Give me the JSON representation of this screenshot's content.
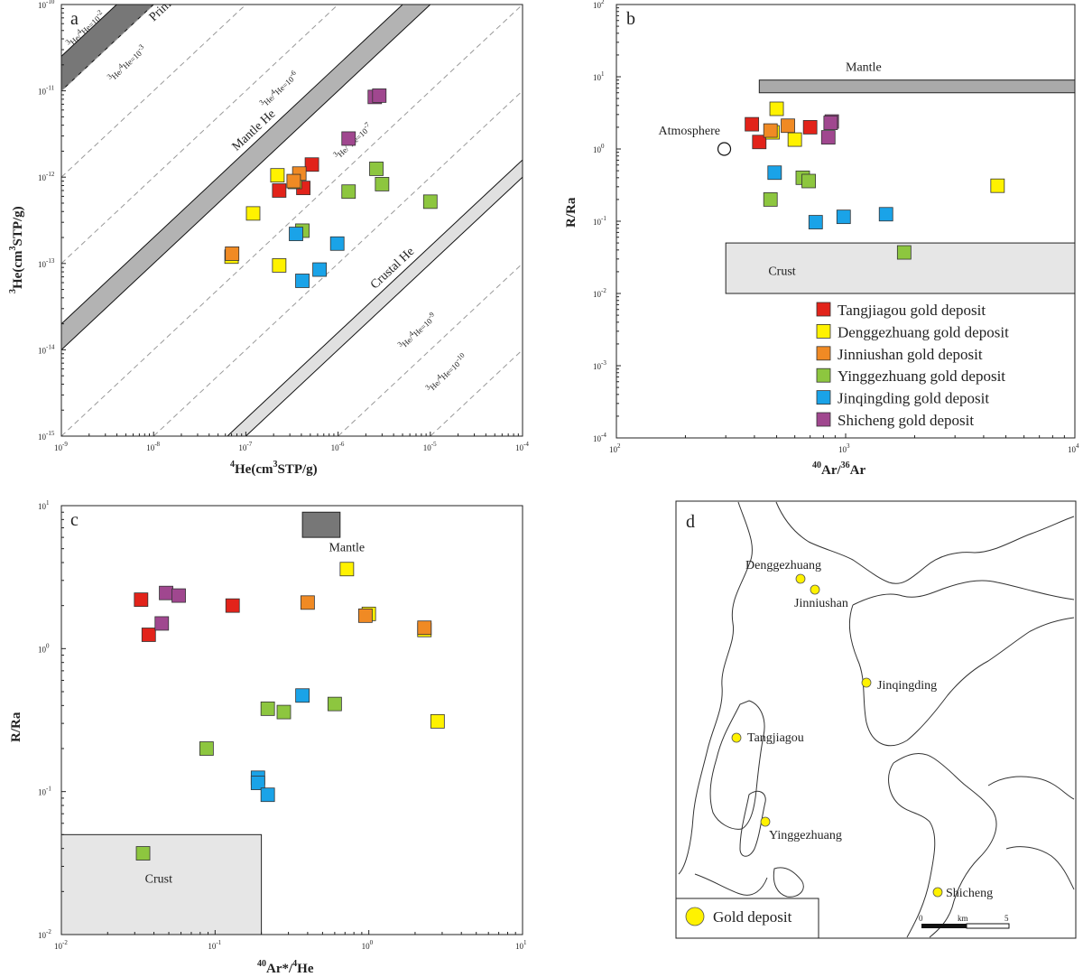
{
  "chart_data": [
    {
      "id": "a",
      "type": "scatter",
      "panel_label": "a",
      "xlabel_base": "He(cm",
      "xlabel_sup1": "4",
      "xlabel_sup2": "3",
      "xlabel_tail": "STP/g)",
      "ylabel_base": "He(cm",
      "ylabel_sup1": "3",
      "ylabel_sup2": "3",
      "ylabel_tail": "STP/g)",
      "x_scale": "log",
      "y_scale": "log",
      "xlim_exp": [
        -9,
        -4
      ],
      "ylim_exp": [
        -15,
        -10
      ],
      "x_tick_exponents": [
        -9,
        -8,
        -7,
        -6,
        -5,
        -4
      ],
      "y_tick_exponents": [
        -15,
        -14,
        -13,
        -12,
        -11,
        -10
      ],
      "bands": [
        {
          "name": "Primative He",
          "ratio_exp": [
            -2.0,
            -1.6
          ],
          "fill": "#777777"
        },
        {
          "name": "Mantle He",
          "ratio_exp": [
            -5.0,
            -4.7
          ],
          "fill": "#b3b3b3"
        },
        {
          "name": "Crustal He",
          "ratio_exp": [
            -8.0,
            -7.8
          ],
          "fill": "#e0e0e0"
        }
      ],
      "ratio_lines": [
        {
          "exp": -2,
          "label": "-2"
        },
        {
          "exp": -3,
          "label": "-3"
        },
        {
          "exp": -4,
          "label": ""
        },
        {
          "exp": -6,
          "label": "-6"
        },
        {
          "exp": -7,
          "label": "-7"
        },
        {
          "exp": -9,
          "label": "-9"
        },
        {
          "exp": -10,
          "label": "-10"
        }
      ],
      "points": [
        {
          "x": 2.3e-07,
          "y": 7e-13,
          "group": "Tangjiagou"
        },
        {
          "x": 4.2e-07,
          "y": 7.5e-13,
          "group": "Tangjiagou"
        },
        {
          "x": 5.2e-07,
          "y": 1.4e-12,
          "group": "Tangjiagou"
        },
        {
          "x": 2.2e-07,
          "y": 1.05e-12,
          "group": "Denggezhuang"
        },
        {
          "x": 1.2e-07,
          "y": 3.8e-13,
          "group": "Denggezhuang"
        },
        {
          "x": 2.3e-07,
          "y": 9.5e-14,
          "group": "Denggezhuang"
        },
        {
          "x": 7e-08,
          "y": 1.2e-13,
          "group": "Denggezhuang"
        },
        {
          "x": 3.4e-07,
          "y": 8.8e-13,
          "group": "Denggezhuang"
        },
        {
          "x": 7.1e-08,
          "y": 1.3e-13,
          "group": "Jinniushan"
        },
        {
          "x": 3.8e-07,
          "y": 1.1e-12,
          "group": "Jinniushan"
        },
        {
          "x": 3.3e-07,
          "y": 9e-13,
          "group": "Jinniushan"
        },
        {
          "x": 1.3e-06,
          "y": 6.8e-13,
          "group": "Yinggezhuang"
        },
        {
          "x": 2.6e-06,
          "y": 1.25e-12,
          "group": "Yinggezhuang"
        },
        {
          "x": 3e-06,
          "y": 8.3e-13,
          "group": "Yinggezhuang"
        },
        {
          "x": 1e-05,
          "y": 5.2e-13,
          "group": "Yinggezhuang"
        },
        {
          "x": 4.1e-07,
          "y": 2.4e-13,
          "group": "Yinggezhuang"
        },
        {
          "x": 3.5e-07,
          "y": 2.2e-13,
          "group": "Jinqingding"
        },
        {
          "x": 9.8e-07,
          "y": 1.7e-13,
          "group": "Jinqingding"
        },
        {
          "x": 6.3e-07,
          "y": 8.5e-14,
          "group": "Jinqingding"
        },
        {
          "x": 4.1e-07,
          "y": 6.3e-14,
          "group": "Jinqingding"
        },
        {
          "x": 2.5e-06,
          "y": 8.5e-12,
          "group": "Shicheng"
        },
        {
          "x": 2.8e-06,
          "y": 8.8e-12,
          "group": "Shicheng"
        },
        {
          "x": 1.3e-06,
          "y": 2.8e-12,
          "group": "Shicheng"
        }
      ]
    },
    {
      "id": "b",
      "type": "scatter",
      "panel_label": "b",
      "xlabel_sup1": "40",
      "xlabel_mid": "Ar/",
      "xlabel_sup2": "36",
      "xlabel_tail": "Ar",
      "ylabel": "R/Ra",
      "x_scale": "log",
      "y_scale": "log",
      "xlim_exp": [
        2,
        4
      ],
      "ylim_exp": [
        -4,
        2
      ],
      "x_tick_exponents": [
        2,
        3,
        4
      ],
      "y_tick_exponents": [
        -4,
        -3,
        -2,
        -1,
        0,
        1,
        2
      ],
      "regions": [
        {
          "name": "Mantle",
          "x": [
            420,
            10000
          ],
          "y": [
            6,
            9
          ],
          "fill": "#aaaaaa"
        },
        {
          "name": "Crust",
          "x": [
            300,
            10000
          ],
          "y": [
            0.01,
            0.05
          ],
          "fill": "#e6e6e6"
        }
      ],
      "atmosphere": {
        "label": "Atmosphere",
        "x": 295.5,
        "y": 1.0
      },
      "points": [
        {
          "x": 390,
          "y": 2.2,
          "group": "Tangjiagou"
        },
        {
          "x": 420,
          "y": 1.25,
          "group": "Tangjiagou"
        },
        {
          "x": 700,
          "y": 2.0,
          "group": "Tangjiagou"
        },
        {
          "x": 500,
          "y": 3.6,
          "group": "Denggezhuang"
        },
        {
          "x": 480,
          "y": 1.7,
          "group": "Denggezhuang"
        },
        {
          "x": 600,
          "y": 1.35,
          "group": "Denggezhuang"
        },
        {
          "x": 4600,
          "y": 0.31,
          "group": "Denggezhuang"
        },
        {
          "x": 470,
          "y": 1.8,
          "group": "Jinniushan"
        },
        {
          "x": 560,
          "y": 2.1,
          "group": "Jinniushan"
        },
        {
          "x": 470,
          "y": 0.2,
          "group": "Yinggezhuang"
        },
        {
          "x": 650,
          "y": 0.4,
          "group": "Yinggezhuang"
        },
        {
          "x": 690,
          "y": 0.36,
          "group": "Yinggezhuang"
        },
        {
          "x": 1800,
          "y": 0.037,
          "group": "Yinggezhuang"
        },
        {
          "x": 490,
          "y": 0.47,
          "group": "Jinqingding"
        },
        {
          "x": 740,
          "y": 0.097,
          "group": "Jinqingding"
        },
        {
          "x": 980,
          "y": 0.115,
          "group": "Jinqingding"
        },
        {
          "x": 1500,
          "y": 0.125,
          "group": "Jinqingding"
        },
        {
          "x": 870,
          "y": 2.4,
          "group": "Shicheng"
        },
        {
          "x": 860,
          "y": 2.3,
          "group": "Shicheng"
        },
        {
          "x": 840,
          "y": 1.45,
          "group": "Shicheng"
        }
      ],
      "legend": [
        {
          "group": "Tangjiagou",
          "label": "Tangjiagou gold deposit",
          "color": "#e2231a"
        },
        {
          "group": "Denggezhuang",
          "label": "Denggezhuang gold deposit",
          "color": "#fff200"
        },
        {
          "group": "Jinniushan",
          "label": "Jinniushan gold deposit",
          "color": "#f08a24"
        },
        {
          "group": "Yinggezhuang",
          "label": "Yinggezhuang gold deposit",
          "color": "#8dc63f"
        },
        {
          "group": "Jinqingding",
          "label": "Jinqingding gold deposit",
          "color": "#1aa3e8"
        },
        {
          "group": "Shicheng",
          "label": "Shicheng gold deposit",
          "color": "#a0478f"
        }
      ]
    },
    {
      "id": "c",
      "type": "scatter",
      "panel_label": "c",
      "xlabel_sup1": "40",
      "xlabel_mid": "Ar*/",
      "xlabel_sup2": "4",
      "xlabel_tail": "He",
      "ylabel": "R/Ra",
      "x_scale": "log",
      "y_scale": "log",
      "xlim_exp": [
        -2,
        1
      ],
      "ylim_exp": [
        -2,
        1
      ],
      "x_tick_exponents": [
        -2,
        -1,
        0,
        1
      ],
      "y_tick_exponents": [
        -2,
        -1,
        0,
        1
      ],
      "regions": [
        {
          "name": "Mantle",
          "x": [
            0.37,
            0.65
          ],
          "y": [
            6,
            9
          ],
          "fill": "#777777"
        },
        {
          "name": "Crust",
          "x": [
            0.01,
            0.2
          ],
          "y": [
            0.01,
            0.05
          ],
          "fill": "#e6e6e6"
        }
      ],
      "points": [
        {
          "x": 0.033,
          "y": 2.2,
          "group": "Tangjiagou"
        },
        {
          "x": 0.037,
          "y": 1.25,
          "group": "Tangjiagou"
        },
        {
          "x": 0.13,
          "y": 2.0,
          "group": "Tangjiagou"
        },
        {
          "x": 0.72,
          "y": 3.6,
          "group": "Denggezhuang"
        },
        {
          "x": 1.0,
          "y": 1.75,
          "group": "Denggezhuang"
        },
        {
          "x": 2.3,
          "y": 1.35,
          "group": "Denggezhuang"
        },
        {
          "x": 2.8,
          "y": 0.31,
          "group": "Denggezhuang"
        },
        {
          "x": 0.4,
          "y": 2.1,
          "group": "Jinniushan"
        },
        {
          "x": 0.95,
          "y": 1.7,
          "group": "Jinniushan"
        },
        {
          "x": 2.3,
          "y": 1.4,
          "group": "Jinniushan"
        },
        {
          "x": 0.088,
          "y": 0.2,
          "group": "Yinggezhuang"
        },
        {
          "x": 0.22,
          "y": 0.38,
          "group": "Yinggezhuang"
        },
        {
          "x": 0.28,
          "y": 0.36,
          "group": "Yinggezhuang"
        },
        {
          "x": 0.6,
          "y": 0.41,
          "group": "Yinggezhuang"
        },
        {
          "x": 0.034,
          "y": 0.037,
          "group": "Yinggezhuang"
        },
        {
          "x": 0.37,
          "y": 0.47,
          "group": "Jinqingding"
        },
        {
          "x": 0.19,
          "y": 0.125,
          "group": "Jinqingding"
        },
        {
          "x": 0.19,
          "y": 0.115,
          "group": "Jinqingding"
        },
        {
          "x": 0.22,
          "y": 0.095,
          "group": "Jinqingding"
        },
        {
          "x": 0.048,
          "y": 2.45,
          "group": "Shicheng"
        },
        {
          "x": 0.058,
          "y": 2.35,
          "group": "Shicheng"
        },
        {
          "x": 0.045,
          "y": 1.5,
          "group": "Shicheng"
        }
      ]
    }
  ],
  "group_colors": {
    "Tangjiagou": "#e2231a",
    "Denggezhuang": "#fff200",
    "Jinniushan": "#f08a24",
    "Yinggezhuang": "#8dc63f",
    "Jinqingding": "#1aa3e8",
    "Shicheng": "#a0478f"
  },
  "labels": {
    "ratio_prefix_sup": "3",
    "ratio_mid": "He/",
    "ratio_mid_sup": "4",
    "ratio_suffix": "He=10",
    "tick_base": "10",
    "mantle": "Mantle",
    "crust": "Crust"
  },
  "map": {
    "panel_label": "d",
    "deposits": [
      {
        "name": "Denggezhuang"
      },
      {
        "name": "Jinniushan"
      },
      {
        "name": "Jinqingding"
      },
      {
        "name": "Tangjiagou"
      },
      {
        "name": "Yinggezhuang"
      },
      {
        "name": "Shicheng"
      }
    ],
    "legend_label": "Gold deposit",
    "scale_zero": "0",
    "scale_unit": "km",
    "scale_max": "5",
    "marker_color": "#fff200"
  }
}
